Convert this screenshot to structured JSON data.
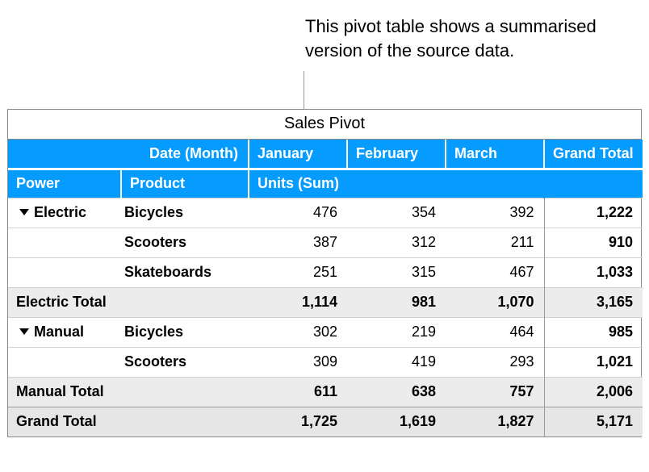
{
  "callout": "This pivot table shows a summarised version of the source data.",
  "title": "Sales Pivot",
  "hdr": {
    "dateMonth": "Date (Month)",
    "months": [
      "January",
      "February",
      "March"
    ],
    "grandTotal": "Grand Total",
    "power": "Power",
    "product": "Product",
    "unitsSum": "Units (Sum)"
  },
  "groups": [
    {
      "name": "Electric",
      "rows": [
        {
          "product": "Bicycles",
          "vals": [
            "476",
            "354",
            "392"
          ],
          "total": "1,222"
        },
        {
          "product": "Scooters",
          "vals": [
            "387",
            "312",
            "211"
          ],
          "total": "910"
        },
        {
          "product": "Skateboards",
          "vals": [
            "251",
            "315",
            "467"
          ],
          "total": "1,033"
        }
      ],
      "subtotalLabel": "Electric Total",
      "subtotalVals": [
        "1,114",
        "981",
        "1,070"
      ],
      "subtotalTotal": "3,165"
    },
    {
      "name": "Manual",
      "rows": [
        {
          "product": "Bicycles",
          "vals": [
            "302",
            "219",
            "464"
          ],
          "total": "985"
        },
        {
          "product": "Scooters",
          "vals": [
            "309",
            "419",
            "293"
          ],
          "total": "1,021"
        }
      ],
      "subtotalLabel": "Manual Total",
      "subtotalVals": [
        "611",
        "638",
        "757"
      ],
      "subtotalTotal": "2,006"
    }
  ],
  "grand": {
    "label": "Grand Total",
    "vals": [
      "1,725",
      "1,619",
      "1,827"
    ],
    "total": "5,171"
  },
  "colors": {
    "headerBg": "#069cff",
    "headerFg": "#ffffff",
    "subtotalBg": "#ececec",
    "grandBg": "#e6e6e6",
    "border": "#8a8a8a"
  }
}
